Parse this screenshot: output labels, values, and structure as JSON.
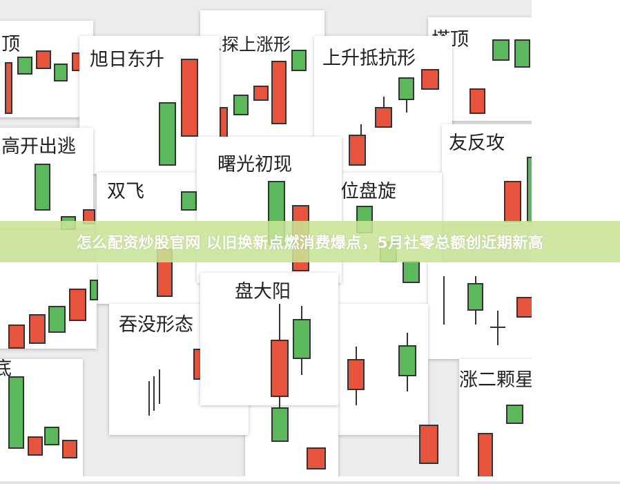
{
  "banner": {
    "headline": "怎么配资炒股官网 以旧换新点燃消费爆点，5月社零总额创近期新高"
  },
  "image": {
    "cards": [
      {
        "title": "顶"
      },
      {
        "title": "塔顶"
      },
      {
        "title": "二探上涨形"
      },
      {
        "title": "旭日东升"
      },
      {
        "title": "上升抵抗形"
      },
      {
        "title": "高开出逃"
      },
      {
        "title": "友反攻"
      },
      {
        "title": "双飞"
      },
      {
        "title": "位盘旋"
      },
      {
        "title": "曙光初现"
      },
      {
        "title": "底"
      },
      {
        "title": "涨二颗星"
      },
      {
        "title": "吞没形态"
      },
      {
        "title": "盘大阳"
      }
    ],
    "colors": {
      "bullish": "#5cb85c",
      "bearish": "#e8533d",
      "banner": "#c8e496"
    }
  }
}
